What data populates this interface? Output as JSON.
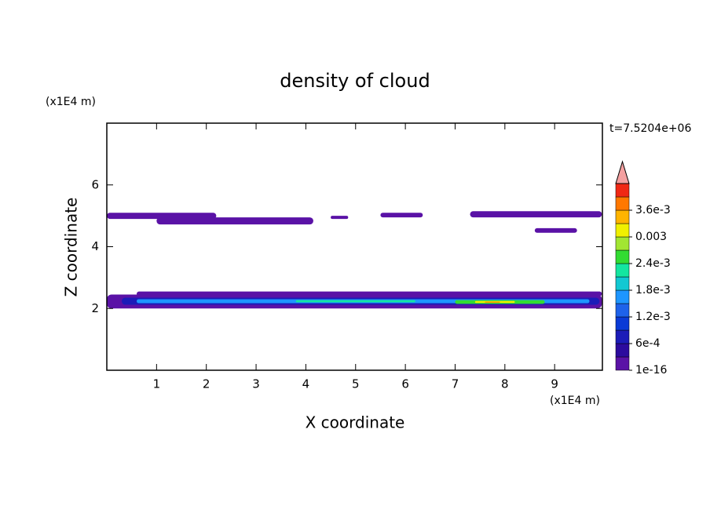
{
  "chart_data": {
    "type": "contour",
    "title": "density of cloud",
    "x_label": "X coordinate",
    "y_label": "Z coordinate",
    "x_unit": "(x1E4 m)",
    "y_unit": "(x1E4 m)",
    "time_label": "t=7.5204e+06",
    "xlim": [
      0,
      9.96
    ],
    "ylim": [
      0,
      8
    ],
    "xticks": [
      1,
      2,
      3,
      4,
      5,
      6,
      7,
      8,
      9
    ],
    "yticks": [
      2,
      4,
      6
    ],
    "colorbar": {
      "levels": [
        1e-16,
        0.0003,
        0.0006,
        0.0009,
        0.0012,
        0.0015,
        0.0018,
        0.0021,
        0.0024,
        0.0027,
        0.003,
        0.0033,
        0.0036,
        0.0039,
        0.0042
      ],
      "colors": [
        "#5a12a6",
        "#2c0b9e",
        "#1c1cb8",
        "#0a3ad6",
        "#1e62ea",
        "#1e96ff",
        "#12c8d2",
        "#14e6a0",
        "#32dc32",
        "#a2e632",
        "#f0f000",
        "#ffb400",
        "#ff7800",
        "#f02814"
      ],
      "extend_color": "#f4a0a0",
      "ticks": [
        {
          "value": 1e-16,
          "label": "1e-16"
        },
        {
          "value": 0.0006,
          "label": "6e-4"
        },
        {
          "value": 0.0012,
          "label": "1.2e-3"
        },
        {
          "value": 0.0018,
          "label": "1.8e-3"
        },
        {
          "value": 0.0024,
          "label": "2.4e-3"
        },
        {
          "value": 0.003,
          "label": "0.003"
        },
        {
          "value": 0.0036,
          "label": "3.6e-3"
        }
      ]
    },
    "patches": [
      {
        "x": [
          0,
          2.2
        ],
        "z": [
          4.9,
          5.1
        ],
        "value": 1e-16
      },
      {
        "x": [
          1.0,
          4.15
        ],
        "z": [
          4.72,
          4.95
        ],
        "value": 1e-16
      },
      {
        "x": [
          4.5,
          4.85
        ],
        "z": [
          4.9,
          5.0
        ],
        "value": 1e-16
      },
      {
        "x": [
          5.5,
          6.35
        ],
        "z": [
          4.95,
          5.1
        ],
        "value": 1e-16
      },
      {
        "x": [
          7.3,
          9.95
        ],
        "z": [
          4.95,
          5.15
        ],
        "value": 1e-16
      },
      {
        "x": [
          8.6,
          9.45
        ],
        "z": [
          4.45,
          4.6
        ],
        "value": 1e-16
      },
      {
        "x": [
          0,
          9.95
        ],
        "z": [
          2.0,
          2.45
        ],
        "value": 1e-16
      },
      {
        "x": [
          0.6,
          9.95
        ],
        "z": [
          2.4,
          2.55
        ],
        "value": 1e-16
      },
      {
        "x": [
          0.3,
          9.9
        ],
        "z": [
          2.12,
          2.35
        ],
        "value": 0.0006
      },
      {
        "x": [
          0.6,
          9.7
        ],
        "z": [
          2.17,
          2.3
        ],
        "value": 0.0015
      },
      {
        "x": [
          3.8,
          6.2
        ],
        "z": [
          2.2,
          2.27
        ],
        "value": 0.0021
      },
      {
        "x": [
          7.0,
          8.8
        ],
        "z": [
          2.15,
          2.27
        ],
        "value": 0.0024
      },
      {
        "x": [
          7.4,
          8.2
        ],
        "z": [
          2.18,
          2.24
        ],
        "value": 0.003
      },
      {
        "x": [
          7.6,
          7.9
        ],
        "z": [
          2.19,
          2.22
        ],
        "value": 0.0036
      }
    ]
  }
}
